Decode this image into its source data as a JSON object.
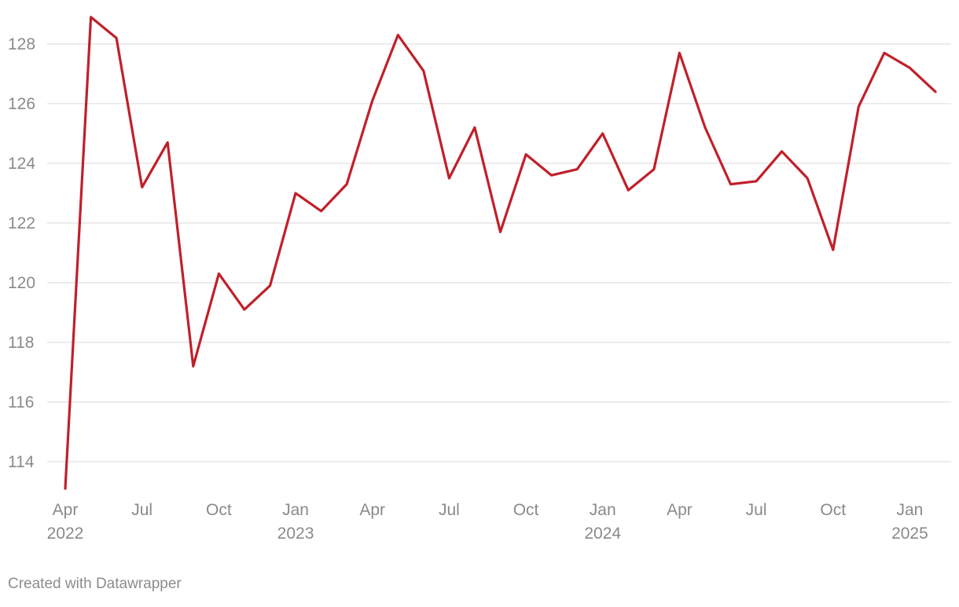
{
  "chart_data": {
    "type": "line",
    "title": "",
    "xlabel": "",
    "ylabel": "",
    "ylim": [
      113,
      129
    ],
    "grid": true,
    "legend": "none",
    "line_color": "#c0202a",
    "y_ticks": [
      114,
      116,
      118,
      120,
      122,
      124,
      126,
      128
    ],
    "x_ticks": [
      {
        "month": "2022-04",
        "label": "Apr",
        "year": "2022"
      },
      {
        "month": "2022-07",
        "label": "Jul",
        "year": ""
      },
      {
        "month": "2022-10",
        "label": "Oct",
        "year": ""
      },
      {
        "month": "2023-01",
        "label": "Jan",
        "year": "2023"
      },
      {
        "month": "2023-04",
        "label": "Apr",
        "year": ""
      },
      {
        "month": "2023-07",
        "label": "Jul",
        "year": ""
      },
      {
        "month": "2023-10",
        "label": "Oct",
        "year": ""
      },
      {
        "month": "2024-01",
        "label": "Jan",
        "year": "2024"
      },
      {
        "month": "2024-04",
        "label": "Apr",
        "year": ""
      },
      {
        "month": "2024-07",
        "label": "Jul",
        "year": ""
      },
      {
        "month": "2024-10",
        "label": "Oct",
        "year": ""
      },
      {
        "month": "2025-01",
        "label": "Jan",
        "year": "2025"
      }
    ],
    "x": [
      "2022-04",
      "2022-05",
      "2022-06",
      "2022-07",
      "2022-08",
      "2022-09",
      "2022-10",
      "2022-11",
      "2022-12",
      "2023-01",
      "2023-02",
      "2023-03",
      "2023-04",
      "2023-05",
      "2023-06",
      "2023-07",
      "2023-08",
      "2023-09",
      "2023-10",
      "2023-11",
      "2023-12",
      "2024-01",
      "2024-02",
      "2024-03",
      "2024-04",
      "2024-05",
      "2024-06",
      "2024-07",
      "2024-08",
      "2024-09",
      "2024-10",
      "2024-11",
      "2024-12",
      "2025-01",
      "2025-02"
    ],
    "values": [
      113.1,
      128.9,
      128.2,
      123.2,
      124.7,
      117.2,
      120.3,
      119.1,
      119.9,
      123.0,
      122.4,
      123.3,
      126.1,
      128.3,
      127.1,
      123.5,
      125.2,
      121.7,
      124.3,
      123.6,
      123.8,
      125.0,
      123.1,
      123.8,
      127.7,
      125.2,
      123.3,
      123.4,
      124.4,
      123.5,
      121.1,
      125.9,
      127.7,
      127.2,
      126.4
    ]
  },
  "footer": {
    "credit": "Created with Datawrapper"
  }
}
